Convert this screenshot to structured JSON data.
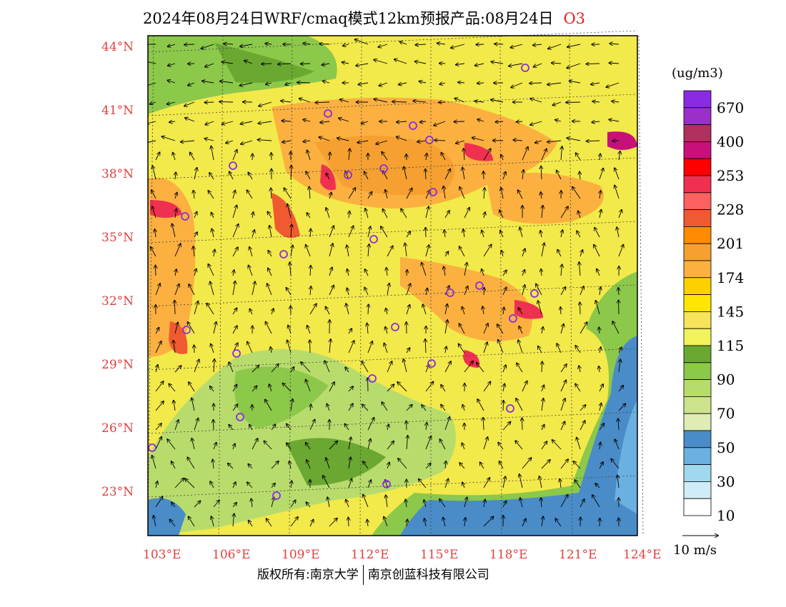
{
  "header": {
    "title": "2024年08月24日WRF/cmaq模式12km预报产品:08月24日",
    "species": "O3"
  },
  "axes": {
    "lat_labels": [
      "44°N",
      "41°N",
      "38°N",
      "35°N",
      "32°N",
      "29°N",
      "26°N",
      "23°N"
    ],
    "lon_labels": [
      "103°E",
      "106°E",
      "109°E",
      "112°E",
      "115°E",
      "118°E",
      "121°E",
      "124°E"
    ]
  },
  "legend": {
    "unit": "(ug/m3)",
    "bins": [
      {
        "label": "670",
        "color": "#8a2be2"
      },
      {
        "label": "",
        "color": "#9b30c8"
      },
      {
        "label": "400",
        "color": "#b03060"
      },
      {
        "label": "",
        "color": "#c8107a"
      },
      {
        "label": "253",
        "color": "#ff0000"
      },
      {
        "label": "",
        "color": "#f03050"
      },
      {
        "label": "228",
        "color": "#ff6060"
      },
      {
        "label": "",
        "color": "#f05a30"
      },
      {
        "label": "201",
        "color": "#ff8c00"
      },
      {
        "label": "",
        "color": "#f5a030"
      },
      {
        "label": "174",
        "color": "#fbb040"
      },
      {
        "label": "",
        "color": "#ffd000"
      },
      {
        "label": "145",
        "color": "#ffe600"
      },
      {
        "label": "",
        "color": "#f7e45a"
      },
      {
        "label": "115",
        "color": "#f2f25c"
      },
      {
        "label": "",
        "color": "#6aa832"
      },
      {
        "label": "90",
        "color": "#8cc84a"
      },
      {
        "label": "",
        "color": "#b8dc6c"
      },
      {
        "label": "70",
        "color": "#cce38c"
      },
      {
        "label": "",
        "color": "#dfecb4"
      },
      {
        "label": "50",
        "color": "#4a8cc8"
      },
      {
        "label": "",
        "color": "#6ab0e0"
      },
      {
        "label": "30",
        "color": "#a0d8f0"
      },
      {
        "label": "",
        "color": "#d0ecf8"
      },
      {
        "label": "10",
        "color": "#ffffff"
      }
    ]
  },
  "wind_reference": {
    "label": "10 m/s"
  },
  "footer": {
    "left": "版权所有:南京大学",
    "right": "南京创蓝科技有限公司"
  }
}
